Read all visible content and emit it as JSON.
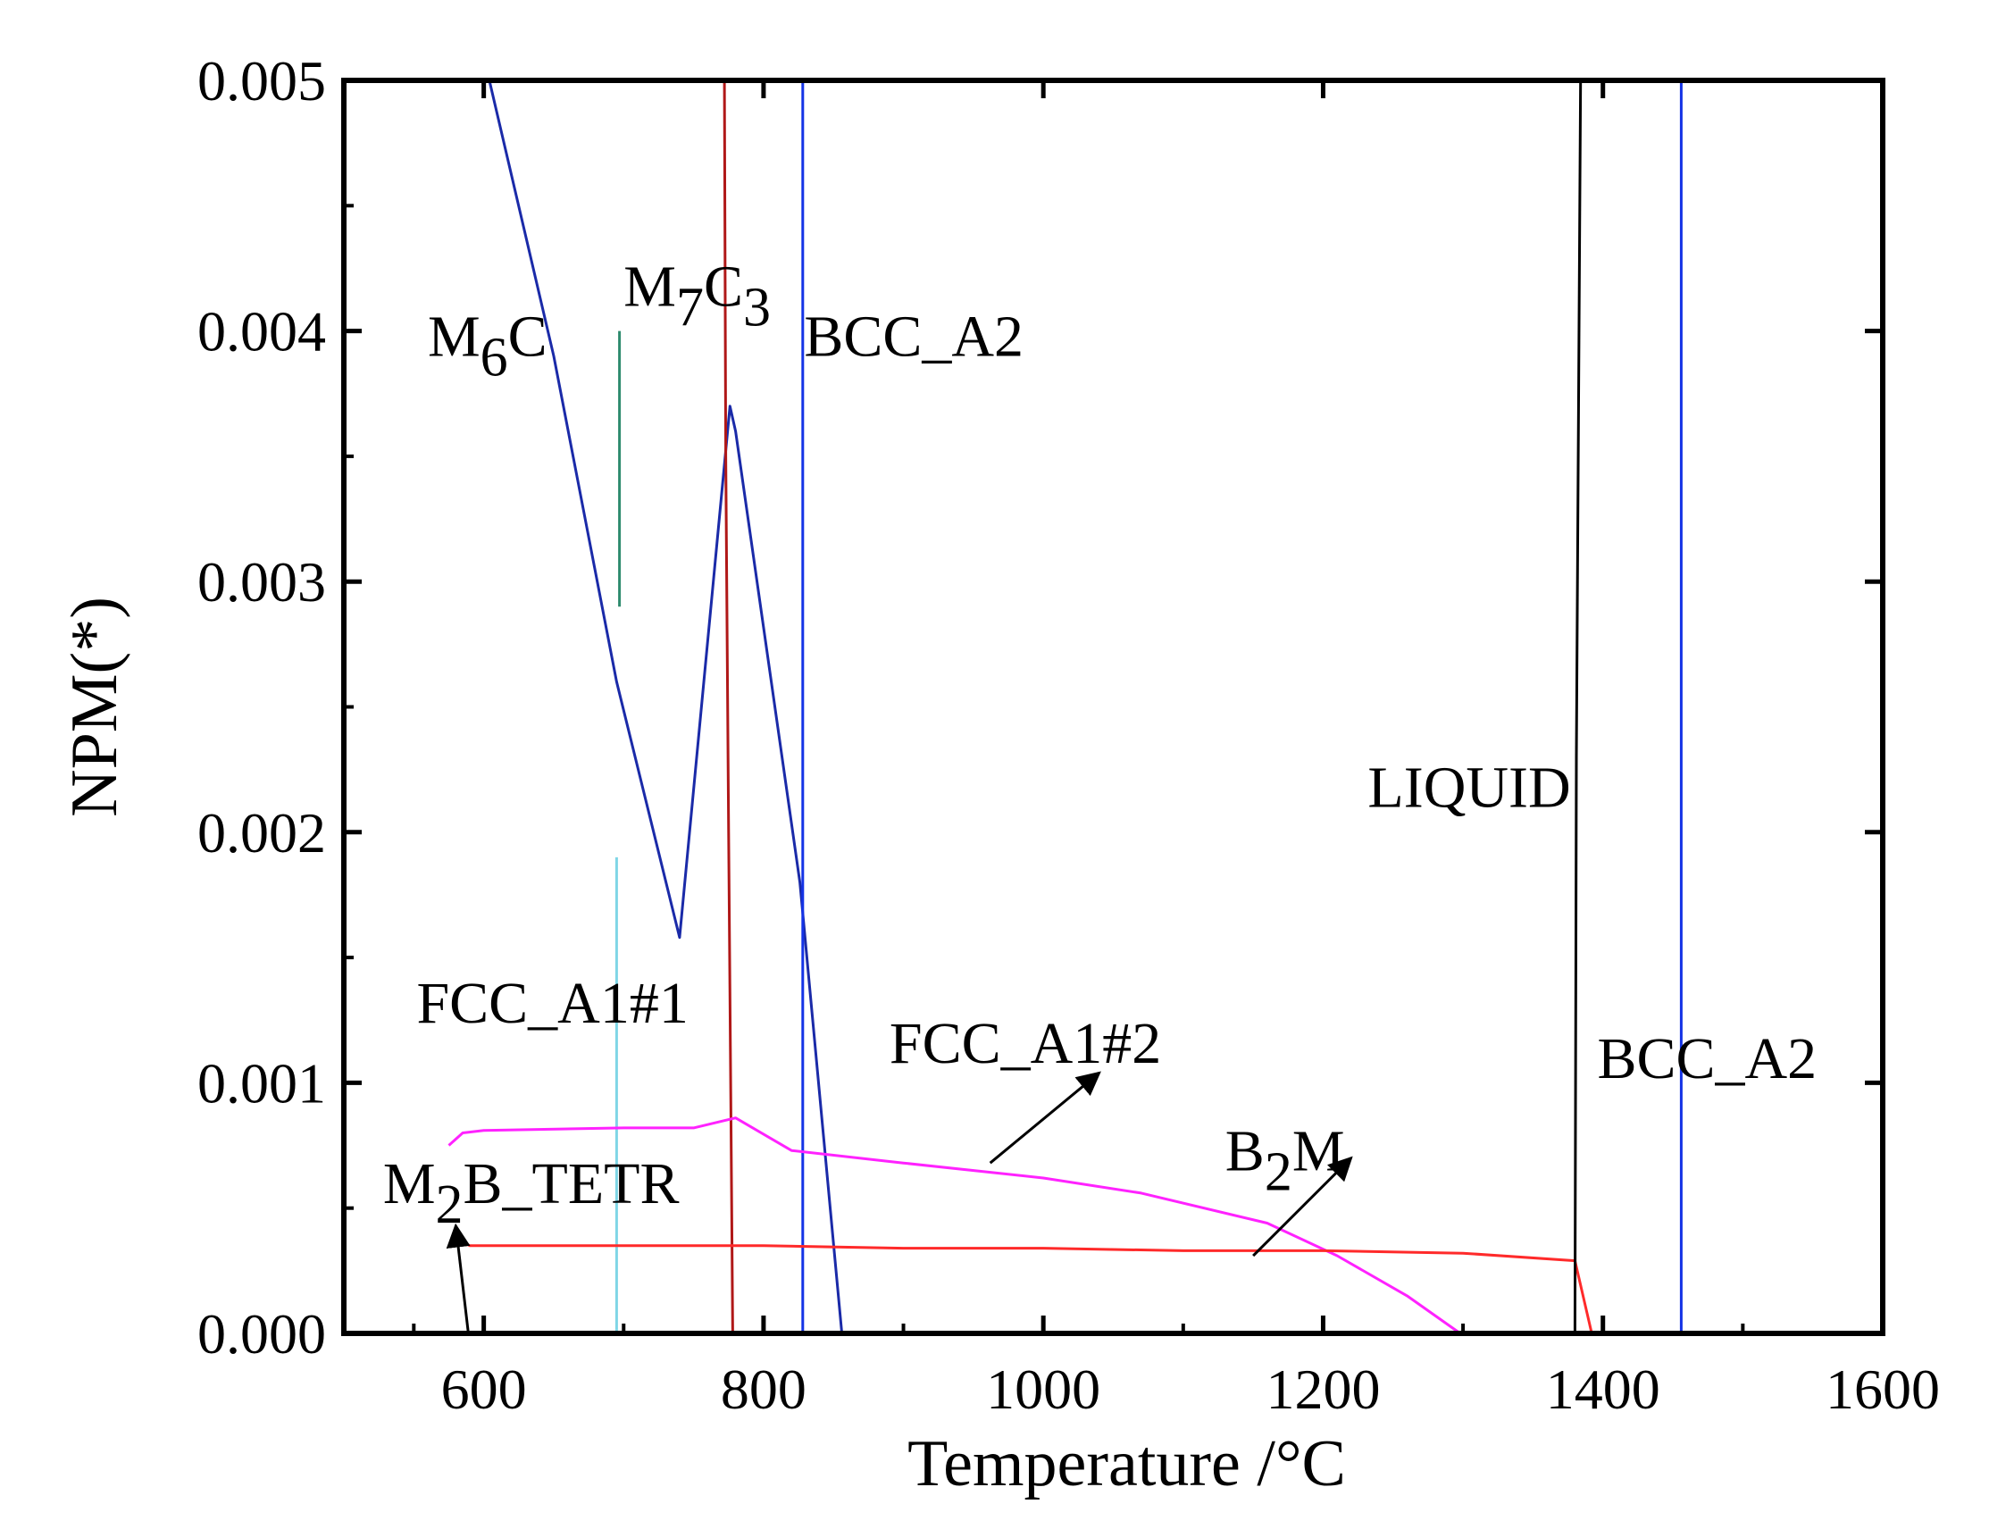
{
  "chart_data": {
    "type": "line",
    "xlabel": "Temperature /°C",
    "ylabel": "NPM(*)",
    "xlim": [
      500,
      1600
    ],
    "ylim": [
      0,
      0.005
    ],
    "x_ticks": [
      600,
      800,
      1000,
      1200,
      1400,
      1600
    ],
    "x_tick_labels": [
      "600",
      "800",
      "1000",
      "1200",
      "1400",
      "1600"
    ],
    "y_ticks": [
      0,
      0.001,
      0.002,
      0.003,
      0.004,
      0.005
    ],
    "y_tick_labels": [
      "0.000",
      "0.001",
      "0.002",
      "0.003",
      "0.004",
      "0.005"
    ],
    "grid": false,
    "series": [
      {
        "name": "M6C",
        "color": "#1a2aa8",
        "points": [
          [
            604,
            0.005
          ],
          [
            650,
            0.0039
          ],
          [
            695,
            0.0026
          ],
          [
            740,
            0.00158
          ],
          [
            776,
            0.0037
          ],
          [
            780,
            0.0036
          ],
          [
            826,
            0.0018
          ],
          [
            856,
            0.0
          ]
        ]
      },
      {
        "name": "M7C3",
        "color": "#2e8b6e",
        "points": [
          [
            697,
            0.004
          ],
          [
            697,
            0.0029
          ]
        ]
      },
      {
        "name": "FCC_A1#1 (cyan)",
        "color": "#7fd6e6",
        "points": [
          [
            695,
            0.0019
          ],
          [
            695,
            0.00045
          ],
          [
            695,
            0.0
          ]
        ]
      },
      {
        "name": "FCC_A1#1",
        "color": "#b01818",
        "points": [
          [
            772,
            0.005
          ],
          [
            773,
            0.0035
          ],
          [
            775,
            0.002
          ],
          [
            778,
            0.0
          ]
        ]
      },
      {
        "name": "BCC_A2 (low T)",
        "color": "#1433e6",
        "points": [
          [
            828,
            0.005
          ],
          [
            828,
            0.0
          ]
        ]
      },
      {
        "name": "FCC_A1#2",
        "color": "#ff22ff",
        "points": [
          [
            575,
            0.00075
          ],
          [
            585,
            0.0008
          ],
          [
            600,
            0.00081
          ],
          [
            700,
            0.00082
          ],
          [
            750,
            0.00082
          ],
          [
            780,
            0.00086
          ],
          [
            820,
            0.00073
          ],
          [
            900,
            0.00068
          ],
          [
            1000,
            0.00062
          ],
          [
            1070,
            0.00056
          ],
          [
            1160,
            0.00044
          ],
          [
            1210,
            0.00031
          ],
          [
            1260,
            0.00015
          ],
          [
            1298,
            0.0
          ]
        ]
      },
      {
        "name": "B2M",
        "color": "#ff2a2a",
        "points": [
          [
            580,
            0.00038
          ],
          [
            590,
            0.00035
          ],
          [
            700,
            0.00035
          ],
          [
            800,
            0.00035
          ],
          [
            900,
            0.00034
          ],
          [
            1000,
            0.00034
          ],
          [
            1100,
            0.00033
          ],
          [
            1200,
            0.00033
          ],
          [
            1300,
            0.00032
          ],
          [
            1380,
            0.00029
          ],
          [
            1392,
            0.0
          ]
        ]
      },
      {
        "name": "LIQUID",
        "color": "#000000",
        "points": [
          [
            1380,
            0.0
          ],
          [
            1381,
            0.0023
          ],
          [
            1384,
            0.005
          ]
        ]
      },
      {
        "name": "BCC_A2 (high T)",
        "color": "#1433e6",
        "points": [
          [
            1456,
            0.005
          ],
          [
            1456,
            0.0
          ]
        ]
      }
    ],
    "annotations": [
      {
        "label": "M",
        "sub": "6",
        "suffix": "C",
        "x": 560,
        "y": 0.0039
      },
      {
        "label": "M",
        "sub": "7",
        "suffix": "C",
        "sub2": "3",
        "x": 700,
        "y": 0.0041
      },
      {
        "label": "BCC_A2",
        "x": 829,
        "y": 0.0039
      },
      {
        "label": "FCC_A1#1",
        "x": 552,
        "y": 0.00124
      },
      {
        "label": "FCC_A1#2",
        "x": 890,
        "y": 0.00108
      },
      {
        "label": "B",
        "sub": "2",
        "suffix": "M",
        "x": 1130,
        "y": 0.00065
      },
      {
        "label": "M",
        "sub": "2",
        "suffix": "B_TETR",
        "x": 528,
        "y": 0.00052
      },
      {
        "label": "LIQUID",
        "x": 1377,
        "y": 0.0021,
        "anchor": "end"
      },
      {
        "label": "BCC_A2",
        "x": 1396,
        "y": 0.00102
      }
    ],
    "arrows": [
      {
        "from": [
          962,
          0.00068
        ],
        "to": [
          1040,
          0.00104
        ]
      },
      {
        "from": [
          1150,
          0.00031
        ],
        "to": [
          1220,
          0.0007
        ]
      },
      {
        "from": [
          589,
          0.0
        ],
        "to": [
          580,
          0.00043
        ]
      }
    ]
  }
}
